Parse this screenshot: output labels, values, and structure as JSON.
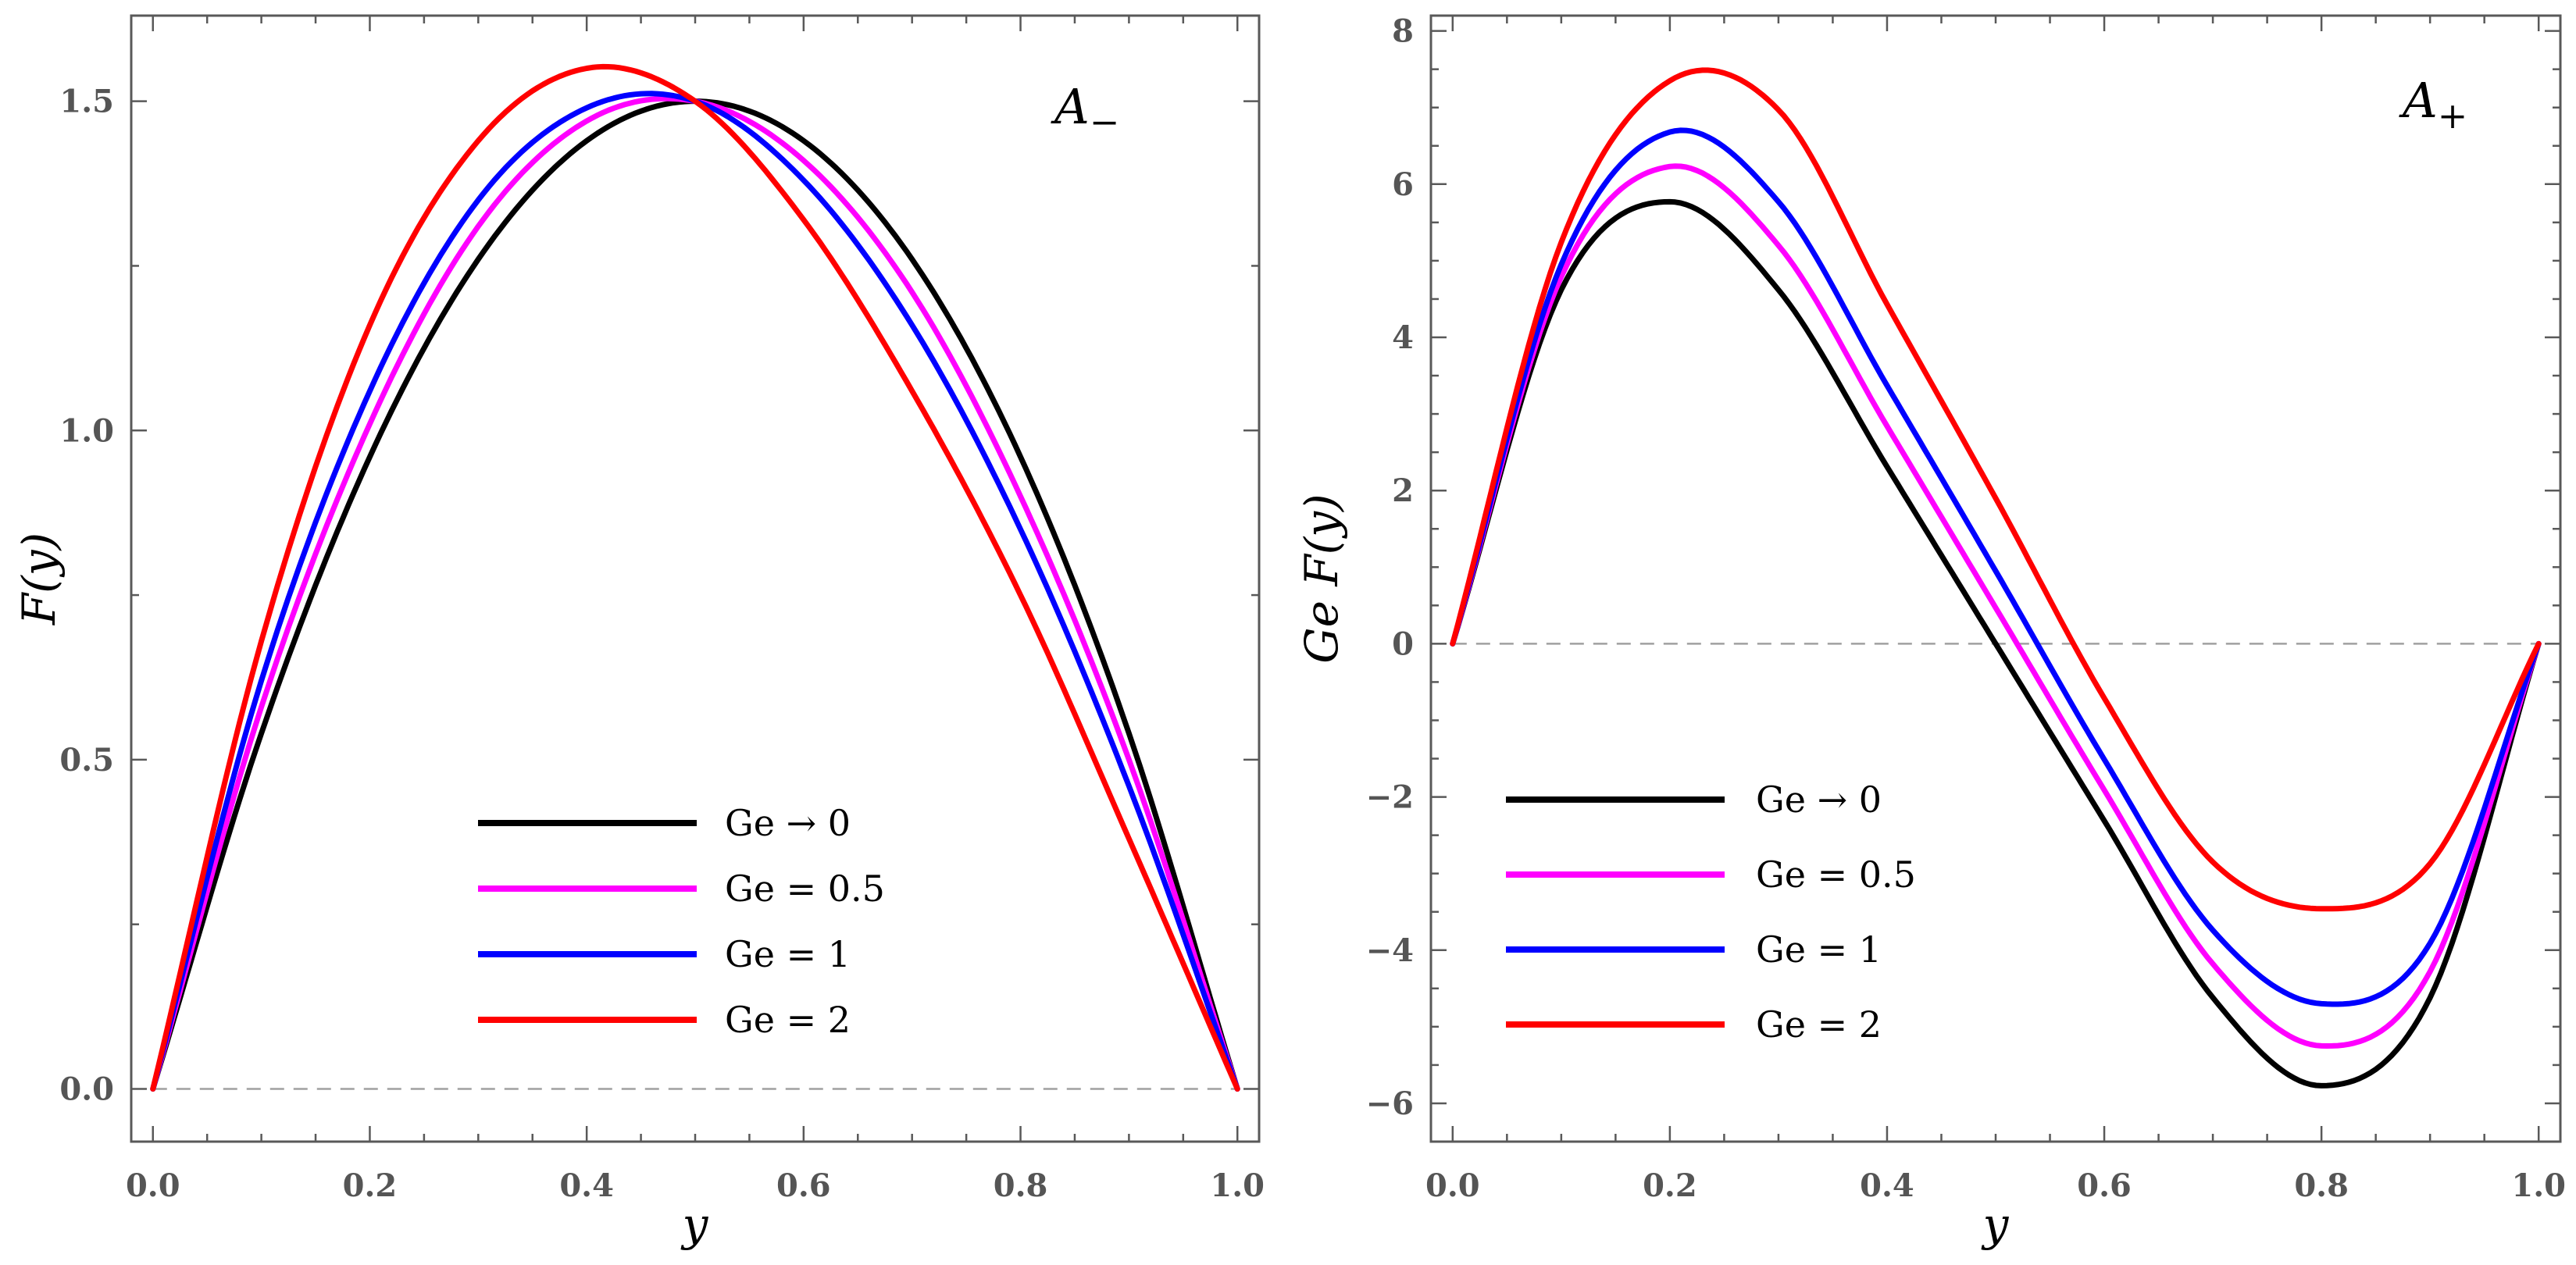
{
  "chart_data": [
    {
      "type": "line",
      "panel_label": "A−",
      "xlabel": "y",
      "ylabel": "F(y)",
      "xlim": [
        -0.02,
        1.02
      ],
      "ylim": [
        -0.08,
        1.63
      ],
      "xticks": [
        "0.0",
        "0.2",
        "0.4",
        "0.6",
        "0.8",
        "1.0"
      ],
      "yticks": [
        "0.0",
        "0.5",
        "1.0",
        "1.5"
      ],
      "legend_position": "bottom-center",
      "reference_line": {
        "y": 0,
        "style": "dashed"
      },
      "series": [
        {
          "name": "Ge → 0",
          "color": "#000000",
          "x": [
            0,
            0.1,
            0.2,
            0.3,
            0.4,
            0.5,
            0.6,
            0.7,
            0.8,
            0.9,
            1.0
          ],
          "values": [
            0,
            0.54,
            0.96,
            1.26,
            1.44,
            1.5,
            1.44,
            1.26,
            0.96,
            0.54,
            0
          ]
        },
        {
          "name": "Ge = 0.5",
          "color": "#ff00ff",
          "x": [
            0,
            0.1,
            0.2,
            0.3,
            0.4,
            0.5,
            0.6,
            0.7,
            0.8,
            0.9,
            1.0
          ],
          "values": [
            0,
            0.58,
            1.01,
            1.31,
            1.47,
            1.5,
            1.41,
            1.21,
            0.9,
            0.5,
            0
          ]
        },
        {
          "name": "Ge = 1",
          "color": "#0000ff",
          "x": [
            0,
            0.1,
            0.2,
            0.3,
            0.4,
            0.5,
            0.6,
            0.7,
            0.8,
            0.9,
            1.0
          ],
          "values": [
            0,
            0.62,
            1.06,
            1.35,
            1.49,
            1.5,
            1.38,
            1.16,
            0.85,
            0.46,
            0
          ]
        },
        {
          "name": "Ge = 2",
          "color": "#ff0000",
          "x": [
            0,
            0.1,
            0.2,
            0.3,
            0.4,
            0.5,
            0.6,
            0.7,
            0.8,
            0.9,
            1.0
          ],
          "values": [
            0,
            0.68,
            1.16,
            1.44,
            1.55,
            1.5,
            1.32,
            1.06,
            0.75,
            0.38,
            0
          ]
        }
      ]
    },
    {
      "type": "line",
      "panel_label": "A+",
      "xlabel": "y",
      "ylabel": "Ge F(y)",
      "xlim": [
        -0.02,
        1.02
      ],
      "ylim": [
        -6.5,
        8.2
      ],
      "xticks": [
        "0.0",
        "0.2",
        "0.4",
        "0.6",
        "0.8",
        "1.0"
      ],
      "yticks": [
        "−6",
        "−4",
        "−2",
        "0",
        "2",
        "4",
        "6",
        "8"
      ],
      "legend_position": "bottom-left",
      "reference_line": {
        "y": 0,
        "style": "dashed"
      },
      "series": [
        {
          "name": "Ge → 0",
          "color": "#000000",
          "x": [
            0,
            0.1,
            0.2,
            0.3,
            0.4,
            0.5,
            0.6,
            0.7,
            0.8,
            0.9,
            1.0
          ],
          "values": [
            0,
            4.62,
            5.77,
            4.62,
            2.31,
            0,
            -2.31,
            -4.62,
            -5.77,
            -4.62,
            0
          ]
        },
        {
          "name": "Ge = 0.5",
          "color": "#ff00ff",
          "x": [
            0,
            0.1,
            0.2,
            0.3,
            0.4,
            0.5,
            0.6,
            0.7,
            0.8,
            0.9,
            1.0
          ],
          "values": [
            0,
            4.79,
            6.23,
            5.2,
            2.84,
            0.47,
            -1.91,
            -4.18,
            -5.25,
            -4.28,
            0
          ]
        },
        {
          "name": "Ge = 1",
          "color": "#0000ff",
          "x": [
            0,
            0.1,
            0.2,
            0.3,
            0.4,
            0.5,
            0.6,
            0.7,
            0.8,
            0.9,
            1.0
          ],
          "values": [
            0,
            4.95,
            6.68,
            5.77,
            3.37,
            0.95,
            -1.51,
            -3.74,
            -4.7,
            -3.91,
            0
          ]
        },
        {
          "name": "Ge = 2",
          "color": "#ff0000",
          "x": [
            0,
            0.1,
            0.2,
            0.3,
            0.4,
            0.5,
            0.6,
            0.7,
            0.8,
            0.9,
            1.0
          ],
          "values": [
            0,
            5.24,
            7.35,
            6.97,
            4.43,
            1.9,
            -0.71,
            -2.85,
            -3.46,
            -2.87,
            0
          ]
        }
      ]
    }
  ]
}
